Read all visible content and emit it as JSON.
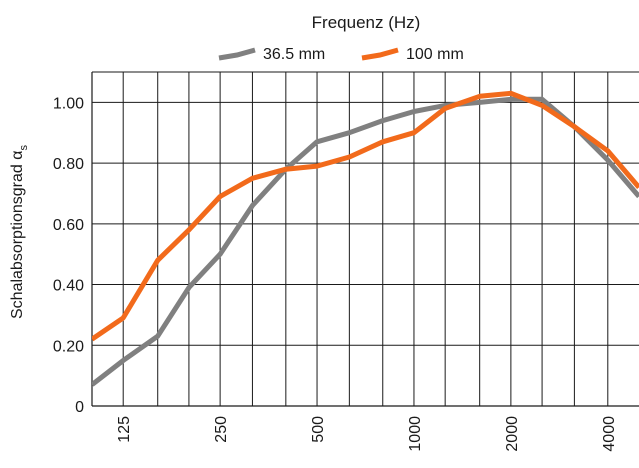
{
  "chart_data": {
    "type": "line",
    "title": "Frequenz (Hz)",
    "xlabel": "",
    "ylabel": "Schalabsorptionsgrad α",
    "ylabel_subscript": "s",
    "x_scale": "log",
    "x_unit": "Hz",
    "x": [
      100,
      125,
      160,
      200,
      250,
      315,
      400,
      500,
      630,
      800,
      1000,
      1250,
      1600,
      2000,
      2500,
      3150,
      4000,
      5000
    ],
    "x_tick_values": [
      125,
      250,
      500,
      1000,
      2000,
      4000
    ],
    "x_tick_labels": [
      "125",
      "250",
      "500",
      "1000",
      "2000",
      "4000"
    ],
    "y_tick_values": [
      0,
      0.2,
      0.4,
      0.6,
      0.8,
      1.0
    ],
    "y_tick_labels": [
      "0",
      "0.20",
      "0.40",
      "0.60",
      "0.80",
      "1.00"
    ],
    "ylim": [
      0,
      1.1
    ],
    "xlim": [
      100,
      5000
    ],
    "grid": true,
    "legend_position": "top-center",
    "series": [
      {
        "name": "36.5 mm",
        "color": "#808080",
        "values": [
          0.07,
          0.15,
          0.23,
          0.39,
          0.5,
          0.66,
          0.78,
          0.87,
          0.9,
          0.94,
          0.97,
          0.99,
          1.0,
          1.01,
          1.01,
          0.92,
          0.81,
          0.69
        ]
      },
      {
        "name": "100 mm",
        "color": "#f26a1b",
        "values": [
          0.22,
          0.29,
          0.48,
          0.58,
          0.69,
          0.75,
          0.78,
          0.79,
          0.82,
          0.87,
          0.9,
          0.98,
          1.02,
          1.03,
          0.99,
          0.92,
          0.84,
          0.72
        ]
      }
    ]
  }
}
